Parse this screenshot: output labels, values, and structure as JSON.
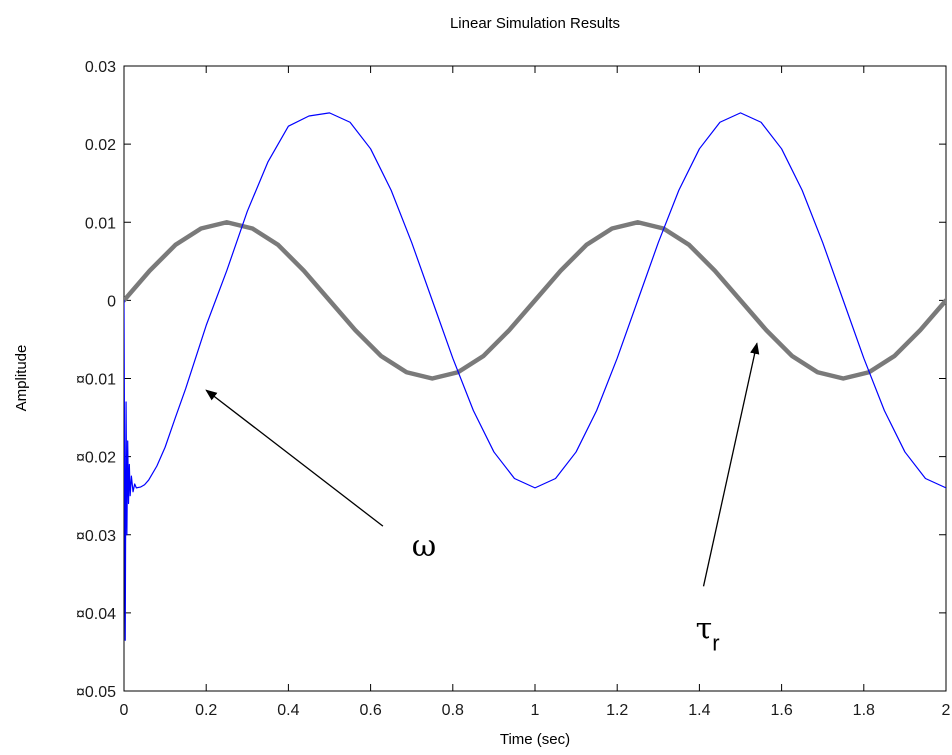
{
  "chart_data": {
    "type": "line",
    "title": "Linear Simulation Results",
    "xlabel": "Time (sec)",
    "ylabel": "Amplitude",
    "xlim": [
      0,
      2
    ],
    "ylim": [
      -0.05,
      0.03
    ],
    "xticks": [
      0,
      0.2,
      0.4,
      0.6,
      0.8,
      1,
      1.2,
      1.4,
      1.6,
      1.8,
      2
    ],
    "xtick_labels": [
      "0",
      "0.2",
      "0.4",
      "0.6",
      "0.8",
      "1",
      "1.2",
      "1.4",
      "1.6",
      "1.8",
      "2"
    ],
    "yticks": [
      0.03,
      0.02,
      0.01,
      0,
      -0.01,
      -0.02,
      -0.03,
      -0.04,
      -0.05
    ],
    "ytick_labels": [
      "0.03",
      "0.02",
      "0.01",
      "0",
      "¤0.01",
      "¤0.02",
      "¤0.03",
      "¤0.04",
      "¤0.05"
    ],
    "grid": false,
    "series": [
      {
        "color": "#0000ff",
        "x": [
          0,
          0.003,
          0.005,
          0.007,
          0.009,
          0.011,
          0.013,
          0.015,
          0.018,
          0.022,
          0.026,
          0.03,
          0.04,
          0.05,
          0.06,
          0.08,
          0.1,
          0.125,
          0.15,
          0.2,
          0.25,
          0.3,
          0.35,
          0.4,
          0.45,
          0.5,
          0.55,
          0.6,
          0.65,
          0.7,
          0.75,
          0.8,
          0.85,
          0.9,
          0.95,
          1.0,
          1.05,
          1.1,
          1.15,
          1.2,
          1.25,
          1.3,
          1.35,
          1.4,
          1.45,
          1.5,
          1.55,
          1.6,
          1.65,
          1.7,
          1.75,
          1.8,
          1.85,
          1.9,
          1.95,
          2.0
        ],
        "y": [
          0,
          -0.0435,
          -0.013,
          -0.03,
          -0.018,
          -0.026,
          -0.021,
          -0.025,
          -0.0225,
          -0.0245,
          -0.0235,
          -0.024,
          -0.0239,
          -0.0236,
          -0.023,
          -0.0212,
          -0.0188,
          -0.015,
          -0.0113,
          -0.0032,
          0.0038,
          0.0114,
          0.0177,
          0.0223,
          0.0236,
          0.024,
          0.0228,
          0.0194,
          0.0141,
          0.0074,
          0.0,
          -0.0074,
          -0.0141,
          -0.0194,
          -0.0228,
          -0.024,
          -0.0228,
          -0.0194,
          -0.0141,
          -0.0074,
          0.0,
          0.0074,
          0.0141,
          0.0194,
          0.0228,
          0.024,
          0.0228,
          0.0194,
          0.0141,
          0.0074,
          0.0,
          -0.0074,
          -0.0141,
          -0.0194,
          -0.0228,
          -0.024
        ]
      },
      {
        "color": "#7a7a7a",
        "x": [
          0,
          0.0625,
          0.125,
          0.1875,
          0.25,
          0.3125,
          0.375,
          0.4375,
          0.5,
          0.5625,
          0.625,
          0.6875,
          0.75,
          0.8125,
          0.875,
          0.9375,
          1.0,
          1.0625,
          1.125,
          1.1875,
          1.25,
          1.3125,
          1.375,
          1.4375,
          1.5,
          1.5625,
          1.625,
          1.6875,
          1.75,
          1.8125,
          1.875,
          1.9375,
          2.0
        ],
        "y": [
          0,
          0.0038,
          0.0071,
          0.0092,
          0.01,
          0.0092,
          0.0071,
          0.0038,
          0,
          -0.0038,
          -0.0071,
          -0.0092,
          -0.01,
          -0.0092,
          -0.0071,
          -0.0038,
          0,
          0.0038,
          0.0071,
          0.0092,
          0.01,
          0.0092,
          0.0071,
          0.0038,
          0,
          -0.0038,
          -0.0071,
          -0.0092,
          -0.01,
          -0.0092,
          -0.0071,
          -0.0038,
          0
        ]
      }
    ],
    "annotations": [
      {
        "text": "ω",
        "sub": "",
        "x": 0.73,
        "y": -0.0327,
        "arrow_from": [
          0.63,
          -0.0289
        ],
        "arrow_to": [
          0.2,
          -0.0115
        ]
      },
      {
        "text": "τ",
        "sub": "r",
        "x": 1.42,
        "y": -0.0433,
        "arrow_from": [
          1.41,
          -0.0366
        ],
        "arrow_to": [
          1.54,
          -0.0055
        ]
      }
    ]
  }
}
